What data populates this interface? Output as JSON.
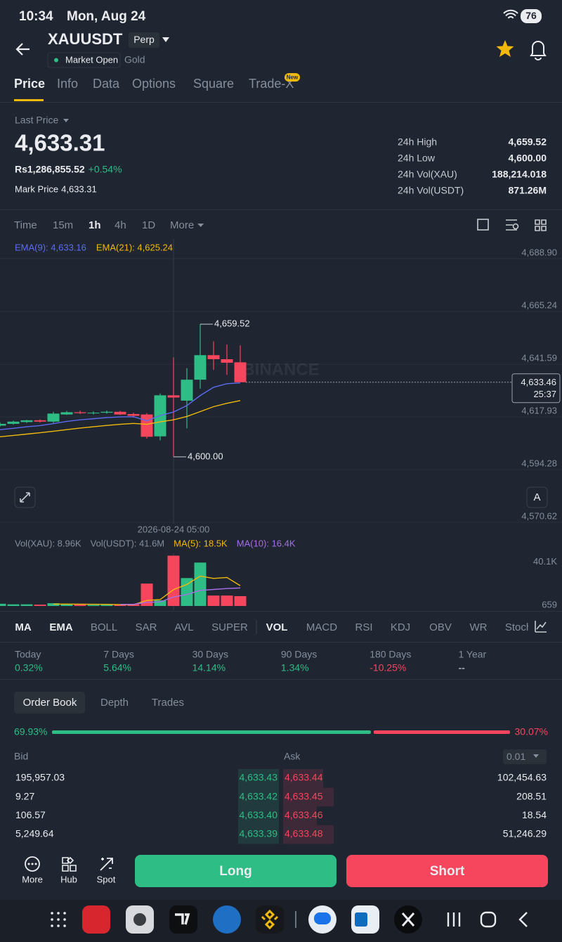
{
  "status_bar": {
    "time": "10:34",
    "date": "Mon, Aug 24",
    "battery": "76"
  },
  "header": {
    "symbol": "XAUUSDT",
    "contract": "Perp",
    "market_status": "Market Open",
    "asset_name": "Gold"
  },
  "tabs": [
    "Price",
    "Info",
    "Data",
    "Options",
    "Square",
    "Trade-X"
  ],
  "new_badge": "New",
  "price_panel": {
    "last_price_label": "Last Price",
    "last_price": "4,633.31",
    "local_price": "Rs1,286,855.52",
    "change": "+0.54%",
    "mark_price_label": "Mark Price",
    "mark_price": "4,633.31",
    "stats": [
      {
        "label": "24h High",
        "value": "4,659.52"
      },
      {
        "label": "24h Low",
        "value": "4,600.00"
      },
      {
        "label": "24h Vol(XAU)",
        "value": "188,214.018"
      },
      {
        "label": "24h Vol(USDT)",
        "value": "871.26M"
      }
    ]
  },
  "intervals": [
    "Time",
    "15m",
    "1h",
    "4h",
    "1D",
    "More"
  ],
  "chart_data": [
    {
      "type": "candlestick",
      "up_color": "#2ebd85",
      "down_color": "#f6465d",
      "open": [
        4614.0,
        4614.8,
        4615.6,
        4616.4,
        4615.8,
        4619.0,
        4620.0,
        4619.6,
        4619.8,
        4620.2,
        4619.2,
        4619.0,
        4609.2,
        4627.6,
        4625.2,
        4634.6,
        4645.6,
        4643.8,
        4642.4
      ],
      "high": [
        4615.5,
        4616.2,
        4616.6,
        4616.8,
        4620.2,
        4620.6,
        4620.8,
        4620.4,
        4620.8,
        4620.6,
        4619.8,
        4619.6,
        4628.4,
        4644.6,
        4639.8,
        4659.52,
        4651.8,
        4650.4,
        4650.0
      ],
      "low": [
        4613.5,
        4614.5,
        4615.2,
        4615.4,
        4615.2,
        4618.8,
        4619.2,
        4619.0,
        4619.4,
        4618.8,
        4617.6,
        4608.2,
        4607.4,
        4600.0,
        4612.8,
        4630.6,
        4639.0,
        4636.8,
        4634.0
      ],
      "close": [
        4614.8,
        4615.8,
        4616.4,
        4615.8,
        4619.4,
        4620.0,
        4619.6,
        4619.8,
        4620.2,
        4619.0,
        4618.4,
        4609.0,
        4627.6,
        4626.6,
        4634.6,
        4645.6,
        4643.8,
        4642.2,
        4633.46
      ],
      "series": [
        {
          "name": "EMA(9): 4,633.16",
          "color": "#5b6cf0",
          "values": [
            4612.2,
            4612.8,
            4613.5,
            4614.0,
            4614.9,
            4615.9,
            4616.6,
            4617.1,
            4617.6,
            4617.9,
            4618.0,
            4616.2,
            4618.5,
            4620.1,
            4623.0,
            4627.5,
            4631.2,
            4632.8,
            4633.16
          ]
        },
        {
          "name": "EMA(21): 4,625.24",
          "color": "#f0b90b",
          "values": [
            4609.0,
            4609.6,
            4610.2,
            4610.8,
            4611.5,
            4612.2,
            4612.9,
            4613.5,
            4614.1,
            4614.6,
            4615.0,
            4614.6,
            4615.7,
            4616.6,
            4618.1,
            4620.3,
            4622.5,
            4624.0,
            4625.24
          ]
        }
      ],
      "ylim": [
        4570.0,
        4697.7
      ],
      "yticks": [
        {
          "value": 4688.9,
          "label": "4,688.90"
        },
        {
          "value": 4665.24,
          "label": "4,665.24"
        },
        {
          "value": 4641.59,
          "label": "4,641.59"
        },
        {
          "value": 4617.93,
          "label": "4,617.93"
        },
        {
          "value": 4594.28,
          "label": "4,594.28"
        },
        {
          "value": 4570.62,
          "label": "4,570.62"
        }
      ],
      "grid": true,
      "x_label": "2026-08-24 05:00",
      "high_label": "4,659.52",
      "low_label": "4,600.00",
      "last_price_tag": "4,633.46",
      "countdown": "25:37",
      "watermark": "BINANCE",
      "auto_scale": "A"
    },
    {
      "type": "bar",
      "legend": [
        "Vol(XAU): 8.96K",
        "Vol(USDT): 41.6M"
      ],
      "values": [
        2000,
        1500,
        1500,
        1200,
        2500,
        1800,
        1200,
        1000,
        1000,
        1200,
        1500,
        20400,
        5100,
        45800,
        25400,
        39500,
        9500,
        9500,
        8960
      ],
      "series": [
        {
          "name": "MA(5): 18.5K",
          "color": "#f0b90b",
          "values": [
            null,
            null,
            null,
            null,
            1740,
            1700,
            1640,
            1540,
            1500,
            1240,
            1180,
            5020,
            5840,
            14860,
            19640,
            27240,
            25060,
            25960,
            18500
          ]
        },
        {
          "name": "MA(10): 16.4K",
          "color": "#a66ee8",
          "values": [
            null,
            null,
            null,
            null,
            null,
            null,
            null,
            null,
            null,
            1490,
            1440,
            3330,
            3690,
            8150,
            10440,
            14210,
            15040,
            15890,
            16400
          ]
        }
      ],
      "ylim": [
        0,
        48000
      ],
      "yticks": [
        {
          "value": 40100,
          "label": "40.1K"
        },
        659
      ]
    }
  ],
  "indicators": [
    {
      "label": "MA",
      "active": true
    },
    {
      "label": "EMA",
      "active": true
    },
    {
      "label": "BOLL",
      "active": false
    },
    {
      "label": "SAR",
      "active": false
    },
    {
      "label": "AVL",
      "active": false
    },
    {
      "label": "SUPER",
      "active": false
    },
    {
      "label": "VOL",
      "active": true
    },
    {
      "label": "MACD",
      "active": false
    },
    {
      "label": "RSI",
      "active": false
    },
    {
      "label": "KDJ",
      "active": false
    },
    {
      "label": "OBV",
      "active": false
    },
    {
      "label": "WR",
      "active": false
    },
    {
      "label": "Stoch",
      "active": false
    }
  ],
  "performance": [
    {
      "period": "Today",
      "value": "0.32%"
    },
    {
      "period": "7 Days",
      "value": "5.64%"
    },
    {
      "period": "30 Days",
      "value": "14.14%"
    },
    {
      "period": "90 Days",
      "value": "1.34%"
    },
    {
      "period": "180 Days",
      "value": "-10.25%"
    },
    {
      "period": "1 Year",
      "value": "--"
    }
  ],
  "order_book": {
    "tabs": [
      "Order Book",
      "Depth",
      "Trades"
    ],
    "bid_ratio": "69.93%",
    "ask_ratio": "30.07%",
    "bid_label": "Bid",
    "ask_label": "Ask",
    "tick_size": "0.01",
    "rows": [
      [
        "195,957.03",
        "4,633.43",
        "4,633.44",
        "102,454.63"
      ],
      [
        "9.27",
        "4,633.42",
        "4,633.45",
        "208.51"
      ],
      [
        "106.57",
        "4,633.40",
        "4,633.46",
        "18.54"
      ],
      [
        "5,249.64",
        "4,633.39",
        "4,633.48",
        "51,246.29"
      ]
    ]
  },
  "actions": {
    "tools": [
      "More",
      "Hub",
      "Spot"
    ],
    "long": "Long",
    "short": "Short"
  }
}
